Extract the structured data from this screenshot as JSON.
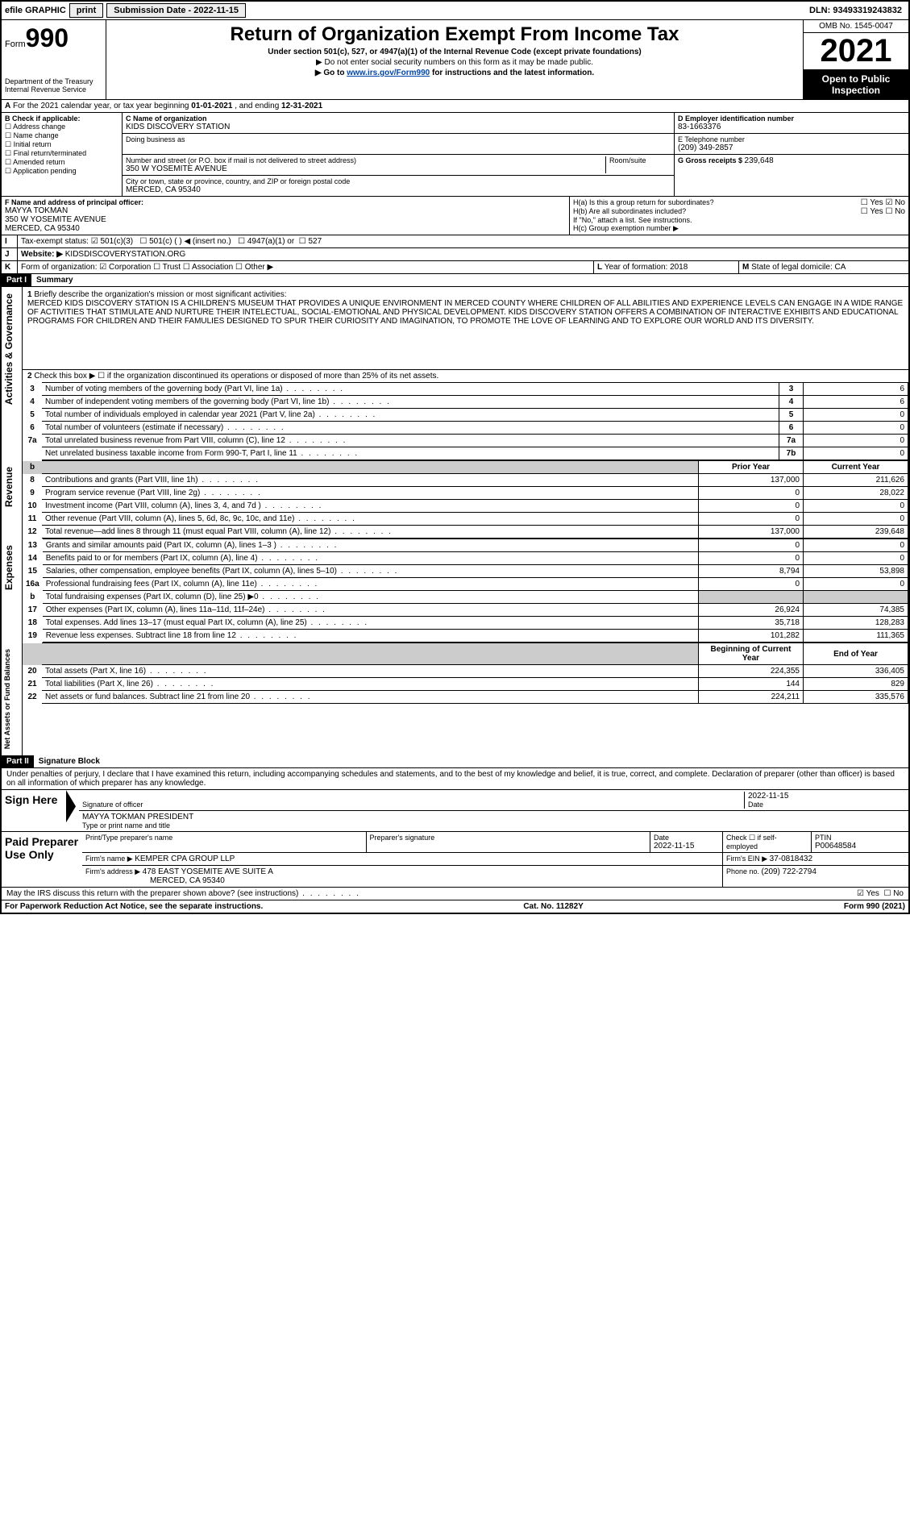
{
  "topbar": {
    "efile": "efile GRAPHIC",
    "print": "print",
    "sub_label": "Submission Date - ",
    "sub_date": "2022-11-15",
    "dln": "DLN: 93493319243832"
  },
  "header": {
    "form": "Form",
    "num": "990",
    "dept": "Department of the Treasury",
    "irs": "Internal Revenue Service",
    "title": "Return of Organization Exempt From Income Tax",
    "sub1": "Under section 501(c), 527, or 4947(a)(1) of the Internal Revenue Code (except private foundations)",
    "sub2": "▶ Do not enter social security numbers on this form as it may be made public.",
    "sub3a": "▶ Go to ",
    "sub3link": "www.irs.gov/Form990",
    "sub3b": " for instructions and the latest information.",
    "omb": "OMB No. 1545-0047",
    "year": "2021",
    "open": "Open to Public Inspection"
  },
  "taxyear": {
    "a": "A",
    "text": "For the 2021 calendar year, or tax year beginning ",
    "begin": "01-01-2021",
    "mid": " , and ending ",
    "end": "12-31-2021"
  },
  "block_b": {
    "label": "B Check if applicable:",
    "addr": "Address change",
    "name": "Name change",
    "init": "Initial return",
    "final": "Final return/terminated",
    "amend": "Amended return",
    "app": "Application pending"
  },
  "block_c": {
    "nameorg_label": "C Name of organization",
    "nameorg": "KIDS DISCOVERY STATION",
    "dba": "Doing business as",
    "street_label": "Number and street (or P.O. box if mail is not delivered to street address)",
    "room_label": "Room/suite",
    "street": "350 W YOSEMITE AVENUE",
    "city_label": "City or town, state or province, country, and ZIP or foreign postal code",
    "city": "MERCED, CA  95340"
  },
  "block_d": {
    "label": "D Employer identification number",
    "ein": "83-1663376",
    "tel_label": "E Telephone number",
    "tel": "(209) 349-2857",
    "gross_label": "G Gross receipts $ ",
    "gross": "239,648"
  },
  "block_f": {
    "label": "F  Name and address of principal officer:",
    "name": "MAYYA TOKMAN",
    "addr1": "350 W YOSEMITE AVENUE",
    "addr2": "MERCED, CA  95340"
  },
  "block_h": {
    "ha": "H(a)  Is this a group return for subordinates?",
    "hb": "H(b)  Are all subordinates included?",
    "hb_note": "If \"No,\" attach a list. See instructions.",
    "hc": "H(c)  Group exemption number ▶",
    "yes": "Yes",
    "no": "No"
  },
  "row_i": {
    "label": "I",
    "tax": "Tax-exempt status:",
    "c3": "501(c)(3)",
    "c": "501(c) (  ) ◀ (insert no.)",
    "a1": "4947(a)(1) or",
    "s527": "527"
  },
  "row_j": {
    "label": "J",
    "web": "Website: ▶",
    "url": "KIDSDISCOVERYSTATION.ORG"
  },
  "row_k": {
    "label": "K",
    "form": "Form of organization:",
    "corp": "Corporation",
    "trust": "Trust",
    "assoc": "Association",
    "other": "Other ▶"
  },
  "row_l": {
    "label": "L",
    "text": "Year of formation: ",
    "val": "2018"
  },
  "row_m": {
    "label": "M",
    "text": "State of legal domicile: ",
    "val": "CA"
  },
  "part1": {
    "hdr": "Part I",
    "title": "Summary",
    "vside_ag": "Activities & Governance",
    "vside_rev": "Revenue",
    "vside_exp": "Expenses",
    "vside_na": "Net Assets or Fund Balances",
    "l1": "Briefly describe the organization's mission or most significant activities:",
    "mission": "MERCED KIDS DISCOVERY STATION IS A CHILDREN'S MUSEUM THAT PROVIDES A UNIQUE ENVIRONMENT IN MERCED COUNTY WHERE CHILDREN OF ALL ABILITIES AND EXPERIENCE LEVELS CAN ENGAGE IN A WIDE RANGE OF ACTIVITIES THAT STIMULATE AND NURTURE THEIR INTELECTUAL, SOCIAL-EMOTIONAL AND PHYSICAL DEVELOPMENT. KIDS DISCOVERY STATION OFFERS A COMBINATION OF INTERACTIVE EXHIBITS AND EDUCATIONAL PROGRAMS FOR CHILDREN AND THEIR FAMULIES DESIGNED TO SPUR THEIR CURIOSITY AND IMAGINATION, TO PROMOTE THE LOVE OF LEARNING AND TO EXPLORE OUR WORLD AND ITS DIVERSITY.",
    "l2": "Check this box ▶ ☐ if the organization discontinued its operations or disposed of more than 25% of its net assets.",
    "rows_gov": [
      {
        "n": "3",
        "d": "Number of voting members of the governing body (Part VI, line 1a)",
        "b": "3",
        "v": "6"
      },
      {
        "n": "4",
        "d": "Number of independent voting members of the governing body (Part VI, line 1b)",
        "b": "4",
        "v": "6"
      },
      {
        "n": "5",
        "d": "Total number of individuals employed in calendar year 2021 (Part V, line 2a)",
        "b": "5",
        "v": "0"
      },
      {
        "n": "6",
        "d": "Total number of volunteers (estimate if necessary)",
        "b": "6",
        "v": "0"
      },
      {
        "n": "7a",
        "d": "Total unrelated business revenue from Part VIII, column (C), line 12",
        "b": "7a",
        "v": "0"
      },
      {
        "n": "",
        "d": "Net unrelated business taxable income from Form 990-T, Part I, line 11",
        "b": "7b",
        "v": "0"
      }
    ],
    "hdr_prior": "Prior Year",
    "hdr_curr": "Current Year",
    "rows_rev": [
      {
        "n": "8",
        "d": "Contributions and grants (Part VIII, line 1h)",
        "p": "137,000",
        "c": "211,626"
      },
      {
        "n": "9",
        "d": "Program service revenue (Part VIII, line 2g)",
        "p": "0",
        "c": "28,022"
      },
      {
        "n": "10",
        "d": "Investment income (Part VIII, column (A), lines 3, 4, and 7d )",
        "p": "0",
        "c": "0"
      },
      {
        "n": "11",
        "d": "Other revenue (Part VIII, column (A), lines 5, 6d, 8c, 9c, 10c, and 11e)",
        "p": "0",
        "c": "0"
      },
      {
        "n": "12",
        "d": "Total revenue—add lines 8 through 11 (must equal Part VIII, column (A), line 12)",
        "p": "137,000",
        "c": "239,648"
      }
    ],
    "rows_exp": [
      {
        "n": "13",
        "d": "Grants and similar amounts paid (Part IX, column (A), lines 1–3 )",
        "p": "0",
        "c": "0"
      },
      {
        "n": "14",
        "d": "Benefits paid to or for members (Part IX, column (A), line 4)",
        "p": "0",
        "c": "0"
      },
      {
        "n": "15",
        "d": "Salaries, other compensation, employee benefits (Part IX, column (A), lines 5–10)",
        "p": "8,794",
        "c": "53,898"
      },
      {
        "n": "16a",
        "d": "Professional fundraising fees (Part IX, column (A), line 11e)",
        "p": "0",
        "c": "0"
      },
      {
        "n": "b",
        "d": "Total fundraising expenses (Part IX, column (D), line 25) ▶0",
        "p": "",
        "c": "",
        "gray": true
      },
      {
        "n": "17",
        "d": "Other expenses (Part IX, column (A), lines 11a–11d, 11f–24e)",
        "p": "26,924",
        "c": "74,385"
      },
      {
        "n": "18",
        "d": "Total expenses. Add lines 13–17 (must equal Part IX, column (A), line 25)",
        "p": "35,718",
        "c": "128,283"
      },
      {
        "n": "19",
        "d": "Revenue less expenses. Subtract line 18 from line 12",
        "p": "101,282",
        "c": "111,365"
      }
    ],
    "hdr_begin": "Beginning of Current Year",
    "hdr_end": "End of Year",
    "rows_na": [
      {
        "n": "20",
        "d": "Total assets (Part X, line 16)",
        "p": "224,355",
        "c": "336,405"
      },
      {
        "n": "21",
        "d": "Total liabilities (Part X, line 26)",
        "p": "144",
        "c": "829"
      },
      {
        "n": "22",
        "d": "Net assets or fund balances. Subtract line 21 from line 20",
        "p": "224,211",
        "c": "335,576"
      }
    ]
  },
  "part2": {
    "hdr": "Part II",
    "title": "Signature Block",
    "decl": "Under penalties of perjury, I declare that I have examined this return, including accompanying schedules and statements, and to the best of my knowledge and belief, it is true, correct, and complete. Declaration of preparer (other than officer) is based on all information of which preparer has any knowledge.",
    "sign_here": "Sign Here",
    "sig_officer": "Signature of officer",
    "date_label": "Date",
    "date": "2022-11-15",
    "officer_name": "MAYYA TOKMAN  PRESIDENT",
    "type_name": "Type or print name and title",
    "paid": "Paid Preparer Use Only",
    "prep_name_label": "Print/Type preparer's name",
    "prep_sig_label": "Preparer's signature",
    "prep_date": "2022-11-15",
    "check_se": "Check ☐ if self-employed",
    "ptin_label": "PTIN",
    "ptin": "P00648584",
    "firm_name_label": "Firm's name    ▶ ",
    "firm_name": "KEMPER CPA GROUP LLP",
    "firm_ein_label": "Firm's EIN ▶ ",
    "firm_ein": "37-0818432",
    "firm_addr_label": "Firm's address ▶ ",
    "firm_addr1": "478 EAST YOSEMITE AVE SUITE A",
    "firm_addr2": "MERCED, CA  95340",
    "phone_label": "Phone no. ",
    "phone": "(209) 722-2794",
    "discuss": "May the IRS discuss this return with the preparer shown above? (see instructions)",
    "yes": "Yes",
    "no": "No"
  },
  "footer": {
    "pra": "For Paperwork Reduction Act Notice, see the separate instructions.",
    "cat": "Cat. No. 11282Y",
    "form": "Form 990 (2021)"
  }
}
